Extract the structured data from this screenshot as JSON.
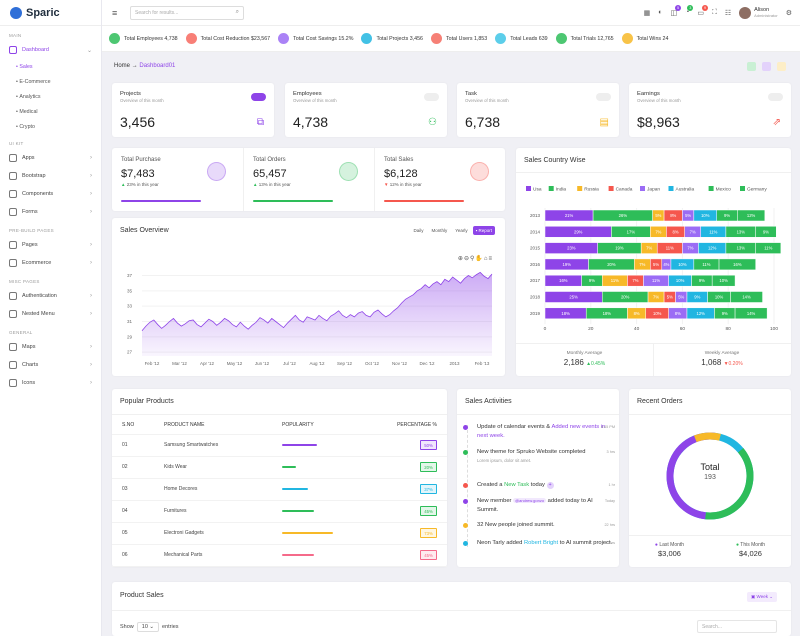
{
  "app": {
    "name": "Sparic"
  },
  "sidebar": {
    "main_label": "MAIN",
    "dashboard": "Dashboard",
    "dash_subs": [
      "Sales",
      "E-Commerce",
      "Analytics",
      "Medical",
      "Crypto"
    ],
    "uikit_label": "UI KIT",
    "uikit_items": [
      "Apps",
      "Bootstrap",
      "Components",
      "Forms"
    ],
    "prebuild_label": "PRE-BUILD PAGES",
    "prebuild_items": [
      "Pages",
      "Ecommerce"
    ],
    "misc_label": "MISC PAGES",
    "misc_items": [
      "Authentication",
      "Nested Menu"
    ],
    "general_label": "GENERAL",
    "general_items": [
      "Maps",
      "Charts",
      "Icons"
    ]
  },
  "topbar": {
    "search_placeholder": "Search for results...",
    "user_name": "Alison",
    "user_role": "Administrator",
    "badges": [
      "5",
      "3",
      "9"
    ]
  },
  "stats": [
    {
      "label": "Total Employees 4,738",
      "color": "#2ebd59"
    },
    {
      "label": "Total Cost Reduction $23,567",
      "color": "#f7695f"
    },
    {
      "label": "Total Cost Savings 15.2%",
      "color": "#9b6cf5"
    },
    {
      "label": "Total Projects 3,456",
      "color": "#21b6e1"
    },
    {
      "label": "Total Users 1,853",
      "color": "#f56a5e"
    },
    {
      "label": "Total Leads 639",
      "color": "#3fc5e6"
    },
    {
      "label": "Total Trials 12,765",
      "color": "#2ebd59"
    },
    {
      "label": "Total Wins 24",
      "color": "#f7b928"
    }
  ],
  "breadcrumb": {
    "home": "Home",
    "arrow": "→",
    "current": "Dashboard01"
  },
  "kpis": [
    {
      "title": "Projects",
      "sub": "Overview of this month",
      "value": "3,456",
      "on": true,
      "icon": "⧉",
      "color": "#8e44e8"
    },
    {
      "title": "Employees",
      "sub": "Overview of this month",
      "value": "4,738",
      "on": false,
      "icon": "⚇",
      "color": "#2ebd59"
    },
    {
      "title": "Task",
      "sub": "Overview of this month",
      "value": "6,738",
      "on": false,
      "icon": "▤",
      "color": "#f7b928"
    },
    {
      "title": "Earnings",
      "sub": "Overview of this month",
      "value": "$8,963",
      "on": false,
      "icon": "⇗",
      "color": "#f5574d"
    }
  ],
  "totals": [
    {
      "label": "Total Purchase",
      "value": "$7,483",
      "change": "23% in this year",
      "color": "#8e44e8",
      "arrow": "▲",
      "arrow_color": "#2ebd59"
    },
    {
      "label": "Total Orders",
      "value": "65,457",
      "change": "13% in this year",
      "color": "#2ebd59",
      "arrow": "▲",
      "arrow_color": "#2ebd59"
    },
    {
      "label": "Total Sales",
      "value": "$6,128",
      "change": "12% in this year",
      "color": "#f5574d",
      "arrow": "▼",
      "arrow_color": "#f5574d"
    }
  ],
  "sales_overview": {
    "title": "Sales Overview",
    "tabs": [
      "Daily",
      "Monthly",
      "Yearly"
    ],
    "report": "Report"
  },
  "country": {
    "title": "Sales Country Wise",
    "monthly_label": "Monthly Average",
    "monthly_value": "2,186",
    "monthly_change": "0.45%",
    "weekly_label": "Weekly Average",
    "weekly_value": "1,068",
    "weekly_change": "0.20%"
  },
  "products": {
    "title": "Popular Products",
    "headers": [
      "S.NO",
      "PRODUCT NAME",
      "POPULARITY",
      "PERCENTAGE %"
    ],
    "rows": [
      {
        "no": "01",
        "name": "Samsung Smartwatches",
        "pct": "50%",
        "p": 0.5,
        "color": "#8e44e8"
      },
      {
        "no": "02",
        "name": "Kids Wear",
        "pct": "20%",
        "p": 0.2,
        "color": "#2ebd59"
      },
      {
        "no": "03",
        "name": "Home Decores",
        "pct": "37%",
        "p": 0.37,
        "color": "#21b6e1"
      },
      {
        "no": "04",
        "name": "Furnitures",
        "pct": "45%",
        "p": 0.45,
        "color": "#2ebd59"
      },
      {
        "no": "05",
        "name": "Electroni Gadgets",
        "pct": "73%",
        "p": 0.73,
        "color": "#f7b928"
      },
      {
        "no": "06",
        "name": "Mechanical Parts",
        "pct": "45%",
        "p": 0.45,
        "color": "#f56a8a"
      }
    ]
  },
  "activities": {
    "title": "Sales Activities",
    "items": [
      {
        "text": "Update of calendar events & ",
        "link": "Added new events in next week.",
        "time": "4:45 PM",
        "color": "#8e44e8"
      },
      {
        "text": "New theme for Spruko Website completed",
        "sub": "Lorem ipsum, dolor sit amet.",
        "time": "3 hrs",
        "color": "#2ebd59"
      },
      {
        "text": "Created a ",
        "link": "New Task",
        "text2": " today",
        "time": "1 hr",
        "color": "#f5574d"
      },
      {
        "text": "New member ",
        "tag": "@andrew.gonzo",
        "text2": " added today to AI Summit.",
        "time": "Today",
        "color": "#8e44e8"
      },
      {
        "text": "32 New people joined summit.",
        "time": "22 hrs",
        "color": "#f7b928"
      },
      {
        "text": "Neon Tarly added ",
        "link": "Robert Bright",
        "text2": " to AI summit project.",
        "time": "22 hrs",
        "color": "#21b6e1"
      }
    ]
  },
  "orders": {
    "title": "Recent Orders",
    "center_label": "Total",
    "center_value": "193",
    "last_label": "Last Month",
    "last_value": "$3,006",
    "this_label": "This Month",
    "this_value": "$4,026"
  },
  "product_sales": {
    "title": "Product Sales",
    "week": "Week",
    "show": "Show",
    "entries_value": "10",
    "entries": "entries",
    "search_placeholder": "Search..."
  },
  "chart_data": [
    {
      "type": "area",
      "title": "Sales Overview",
      "x_ticks": [
        "Feb '12",
        "Mar '12",
        "Apr '12",
        "May '12",
        "Jun '12",
        "Jul '12",
        "Aug '12",
        "Sep '12",
        "Oct '12",
        "Nov '12",
        "Dec '12",
        "2013",
        "Feb '13"
      ],
      "y_ticks": [
        27,
        29,
        31,
        33,
        35,
        37
      ],
      "ylim": [
        26.5,
        38.5
      ],
      "values": [
        29.8,
        30.4,
        30.9,
        31.2,
        30.6,
        30.1,
        30.5,
        31.0,
        31.4,
        30.8,
        30.4,
        30.7,
        31.1,
        31.2,
        30.6,
        30.3,
        30.8,
        31.3,
        31.0,
        30.5,
        30.9,
        31.4,
        31.1,
        30.6,
        30.3,
        30.9,
        30.4,
        30.0,
        30.5,
        30.9,
        31.5,
        31.2,
        30.8,
        31.4,
        31.0,
        30.6,
        30.2,
        30.8,
        31.3,
        31.8,
        31.2,
        30.9,
        31.6,
        31.4,
        31.2,
        31.8,
        31.4,
        31.1,
        31.7,
        32.0,
        32.4,
        31.8,
        31.5,
        31.9,
        31.6,
        32.1,
        32.3,
        31.8,
        31.6,
        32.2,
        32.5,
        32.0,
        31.6,
        31.9,
        32.4,
        32.8,
        33.4,
        33.9,
        34.2,
        34.5,
        35.0,
        35.3,
        35.8,
        35.4,
        35.9,
        36.2,
        35.8,
        36.5,
        36.2,
        36.8,
        36.4,
        36.0,
        36.6,
        37.0,
        36.7,
        37.1,
        37.4,
        36.9,
        36.6,
        37.2
      ],
      "color": "#8e44e8"
    },
    {
      "type": "bar",
      "stacked": true,
      "horizontal": true,
      "title": "Sales Country Wise",
      "categories": [
        "2013",
        "2014",
        "2015",
        "2016",
        "2017",
        "2018",
        "2019"
      ],
      "xlim": [
        0,
        100
      ],
      "x_ticks": [
        0,
        20,
        40,
        60,
        80,
        100
      ],
      "series": [
        {
          "name": "Usa",
          "color": "#8e44e8",
          "values": [
            21,
            29,
            23,
            19,
            16,
            25,
            18
          ]
        },
        {
          "name": "India",
          "color": "#2ebd59",
          "values": [
            26,
            17,
            19,
            20,
            9,
            20,
            18
          ]
        },
        {
          "name": "Russia",
          "color": "#f7b928",
          "values": [
            5,
            7,
            7,
            7,
            11,
            7,
            8
          ]
        },
        {
          "name": "Canada",
          "color": "#f5574d",
          "values": [
            8,
            8,
            11,
            5,
            7,
            5,
            10
          ]
        },
        {
          "name": "Japan",
          "color": "#9b6cf5",
          "values": [
            5,
            7,
            7,
            4,
            11,
            5,
            8
          ]
        },
        {
          "name": "Australia",
          "color": "#21b6e1",
          "values": [
            10,
            11,
            12,
            10,
            10,
            9,
            12
          ]
        },
        {
          "name": "Mexico",
          "color": "#2ebd59",
          "values": [
            9,
            13,
            13,
            11,
            9,
            10,
            9
          ]
        },
        {
          "name": "Germany",
          "color": "#2ebd59",
          "values": [
            12,
            9,
            11,
            16,
            10,
            14,
            14
          ]
        }
      ]
    },
    {
      "type": "pie",
      "donut": true,
      "title": "Recent Orders",
      "slices": [
        {
          "label": "Last Month",
          "value": 43,
          "color": "#2ebd59"
        },
        {
          "label": "This Month",
          "value": 57,
          "color": "#8e44e8"
        }
      ],
      "extra_colors": [
        "#21b6e1",
        "#f7b928"
      ]
    }
  ]
}
